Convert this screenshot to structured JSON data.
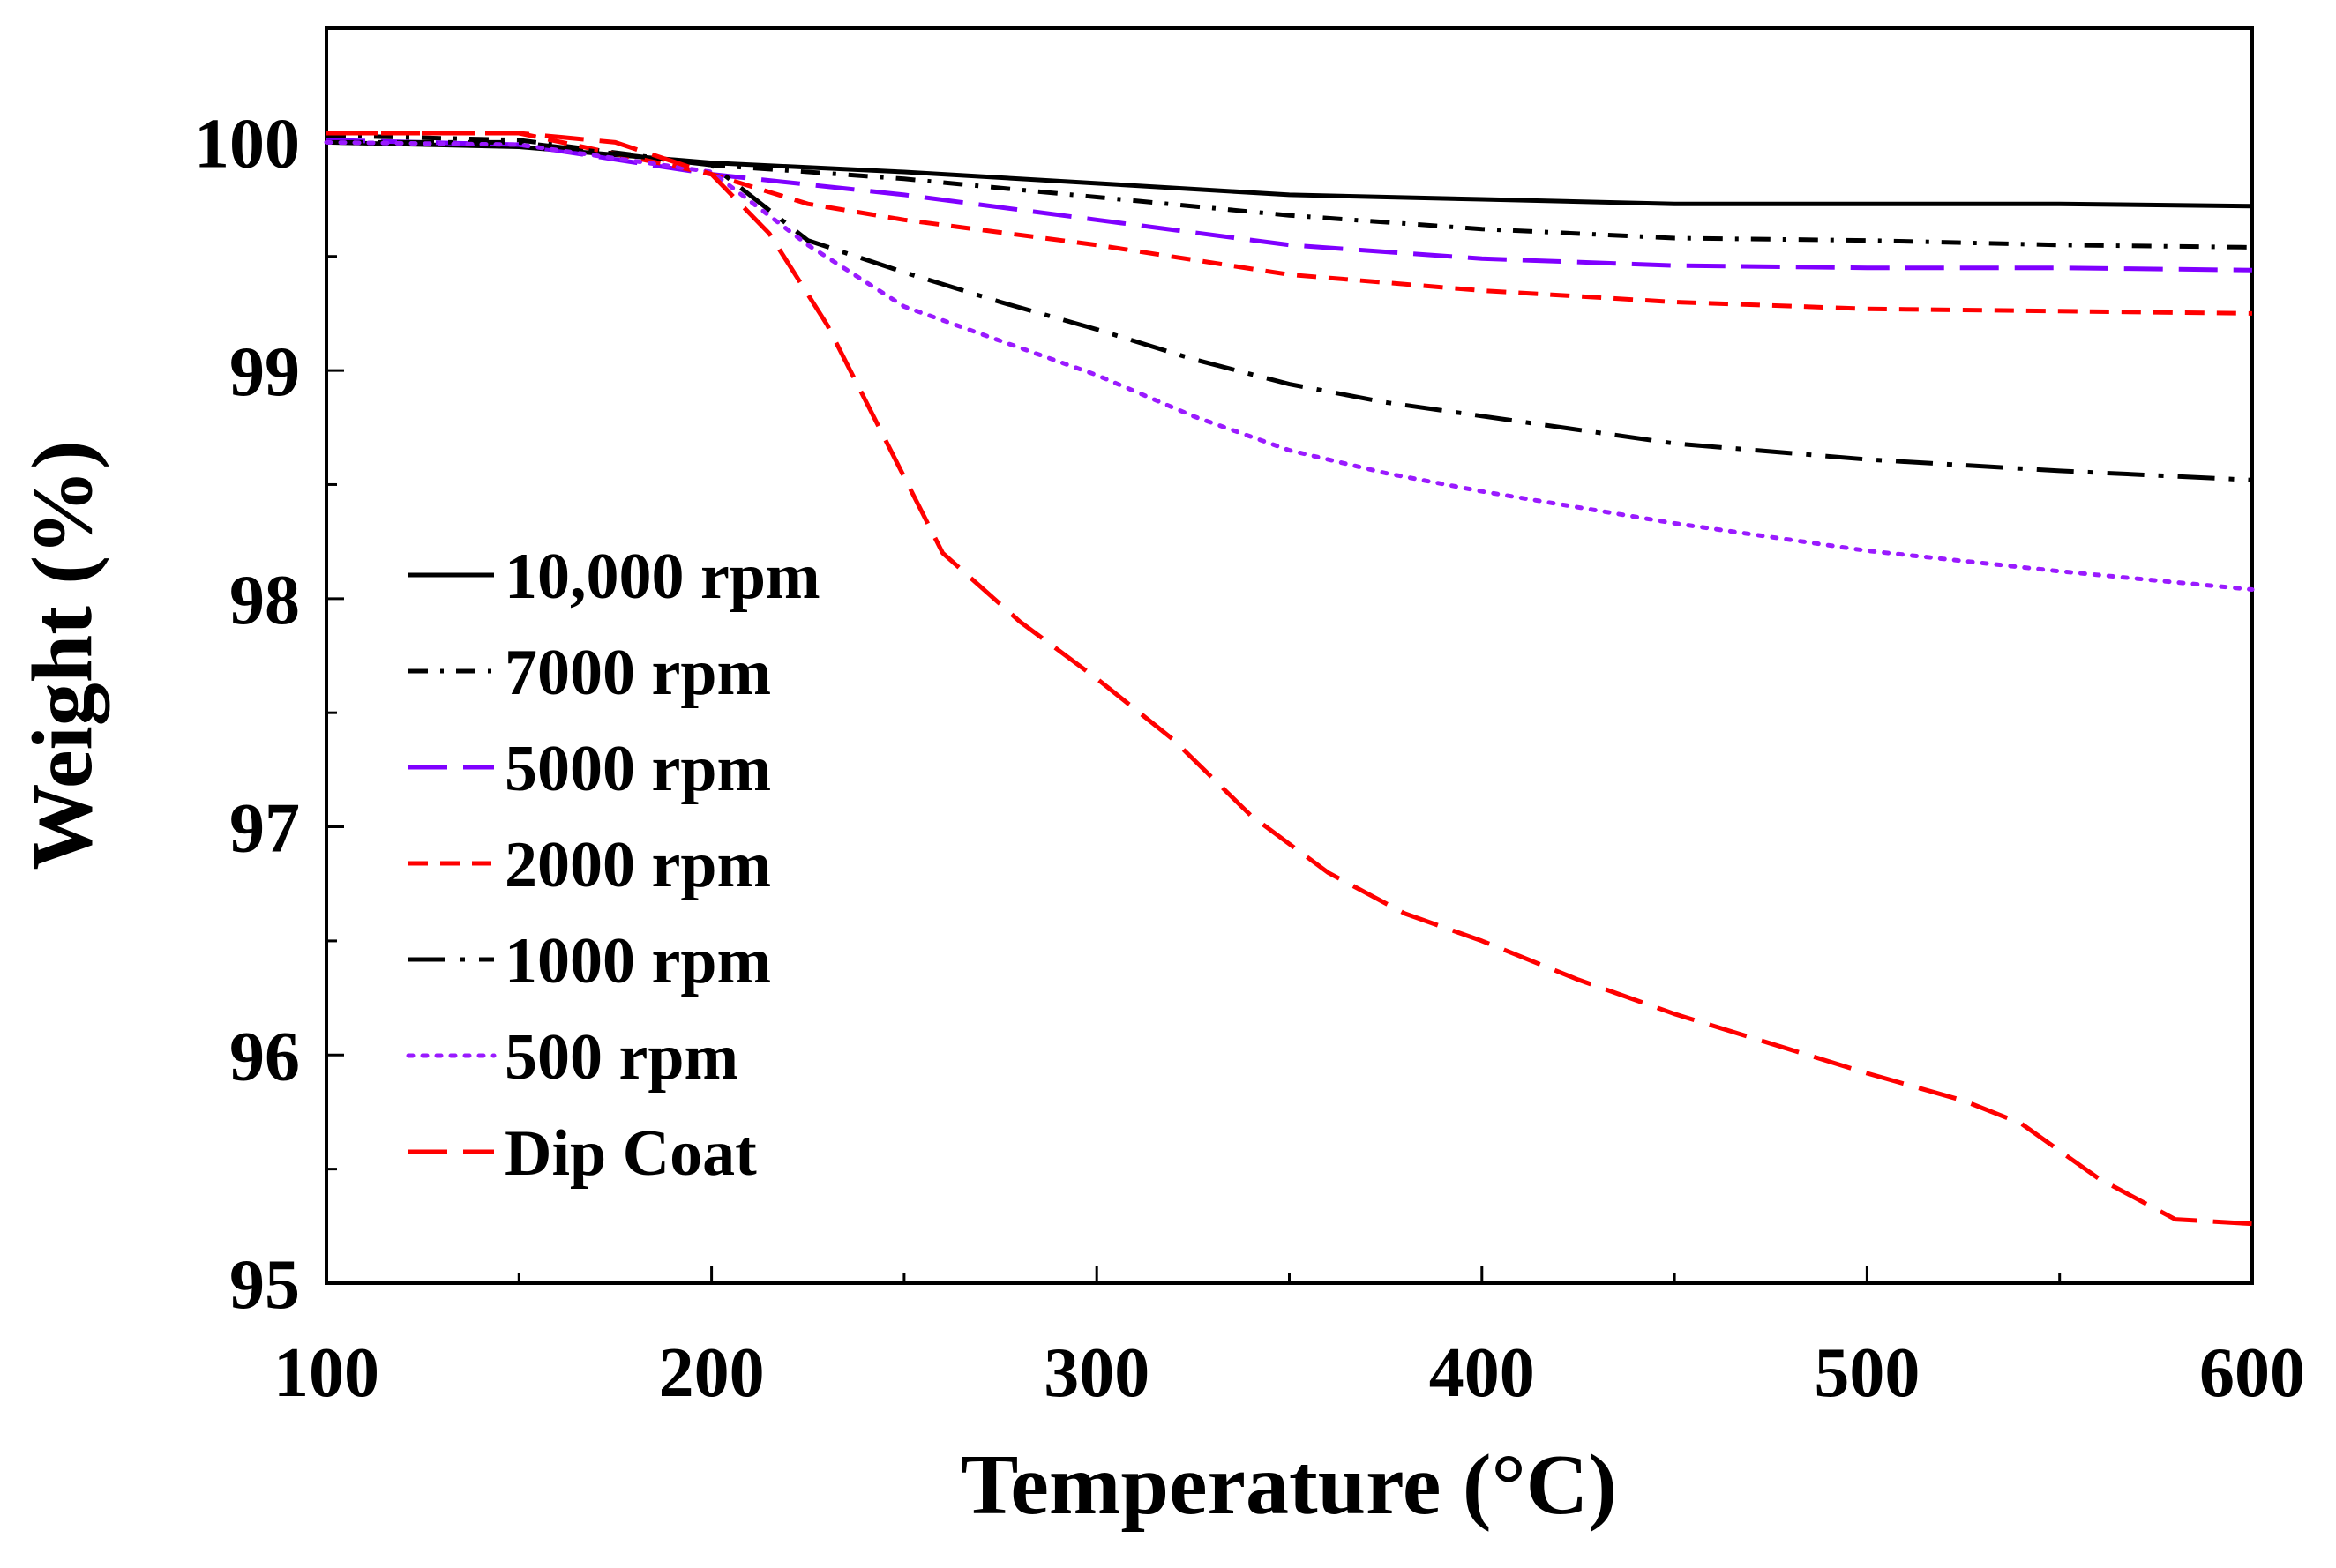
{
  "chart_data": {
    "type": "line",
    "title": "",
    "xlabel": "Temperature (°C)",
    "ylabel": "Weight (%)",
    "xlim": [
      100,
      600
    ],
    "ylim": [
      95,
      100.5
    ],
    "xticks": [
      100,
      200,
      300,
      400,
      500,
      600
    ],
    "yticks": [
      95,
      96,
      97,
      98,
      99,
      100
    ],
    "xtick_labels": [
      "100",
      "200",
      "300",
      "400",
      "500",
      "600"
    ],
    "ytick_labels": [
      "95",
      "96",
      "97",
      "98",
      "99",
      "100"
    ],
    "grid": false,
    "legend_position": "left",
    "series": [
      {
        "name": "10,000 rpm",
        "color": "#000000",
        "style": "solid",
        "x": [
          100,
          150,
          200,
          250,
          300,
          350,
          400,
          450,
          500,
          550,
          600
        ],
        "y": [
          100.0,
          99.98,
          99.91,
          99.87,
          99.82,
          99.77,
          99.75,
          99.73,
          99.73,
          99.73,
          99.72
        ]
      },
      {
        "name": "7000 rpm",
        "color": "#000000",
        "style": "dashdot",
        "x": [
          100,
          150,
          200,
          250,
          300,
          350,
          400,
          450,
          500,
          550,
          600
        ],
        "y": [
          100.03,
          100.01,
          99.9,
          99.84,
          99.76,
          99.68,
          99.62,
          99.58,
          99.57,
          99.55,
          99.54
        ]
      },
      {
        "name": "5000 rpm",
        "color": "#7f00ff",
        "style": "longdash",
        "x": [
          100,
          150,
          200,
          250,
          300,
          350,
          400,
          450,
          500,
          550,
          600
        ],
        "y": [
          100.01,
          99.99,
          99.86,
          99.77,
          99.66,
          99.55,
          99.49,
          99.46,
          99.45,
          99.45,
          99.44
        ]
      },
      {
        "name": "2000 rpm",
        "color": "#ff0000",
        "style": "dash",
        "x": [
          100,
          150,
          200,
          225,
          250,
          300,
          350,
          400,
          450,
          500,
          550,
          600
        ],
        "y": [
          100.04,
          100.04,
          99.86,
          99.73,
          99.66,
          99.55,
          99.42,
          99.35,
          99.3,
          99.27,
          99.26,
          99.25
        ]
      },
      {
        "name": "1000 rpm",
        "color": "#000000",
        "style": "longdashdot",
        "x": [
          100,
          150,
          200,
          225,
          250,
          275,
          300,
          325,
          350,
          375,
          400,
          450,
          500,
          550,
          600
        ],
        "y": [
          100.0,
          100.0,
          99.9,
          99.57,
          99.43,
          99.3,
          99.18,
          99.05,
          98.94,
          98.86,
          98.8,
          98.68,
          98.61,
          98.56,
          98.52
        ]
      },
      {
        "name": "500 rpm",
        "color": "#9a1aff",
        "style": "dot",
        "x": [
          100,
          150,
          200,
          225,
          250,
          275,
          300,
          325,
          350,
          375,
          400,
          450,
          500,
          550,
          600
        ],
        "y": [
          100.0,
          99.99,
          99.87,
          99.55,
          99.28,
          99.13,
          98.98,
          98.8,
          98.65,
          98.55,
          98.47,
          98.33,
          98.21,
          98.12,
          98.04
        ]
      },
      {
        "name": "Dip Coat",
        "color": "#ff0000",
        "style": "longdash",
        "x": [
          100,
          150,
          175,
          200,
          215,
          230,
          245,
          260,
          280,
          300,
          320,
          340,
          360,
          380,
          400,
          425,
          450,
          475,
          500,
          525,
          540,
          560,
          580,
          600
        ],
        "y": [
          100.04,
          100.04,
          100.0,
          99.86,
          99.6,
          99.2,
          98.7,
          98.2,
          97.9,
          97.65,
          97.38,
          97.05,
          96.8,
          96.62,
          96.5,
          96.33,
          96.18,
          96.05,
          95.92,
          95.8,
          95.7,
          95.46,
          95.28,
          95.26
        ]
      }
    ]
  }
}
